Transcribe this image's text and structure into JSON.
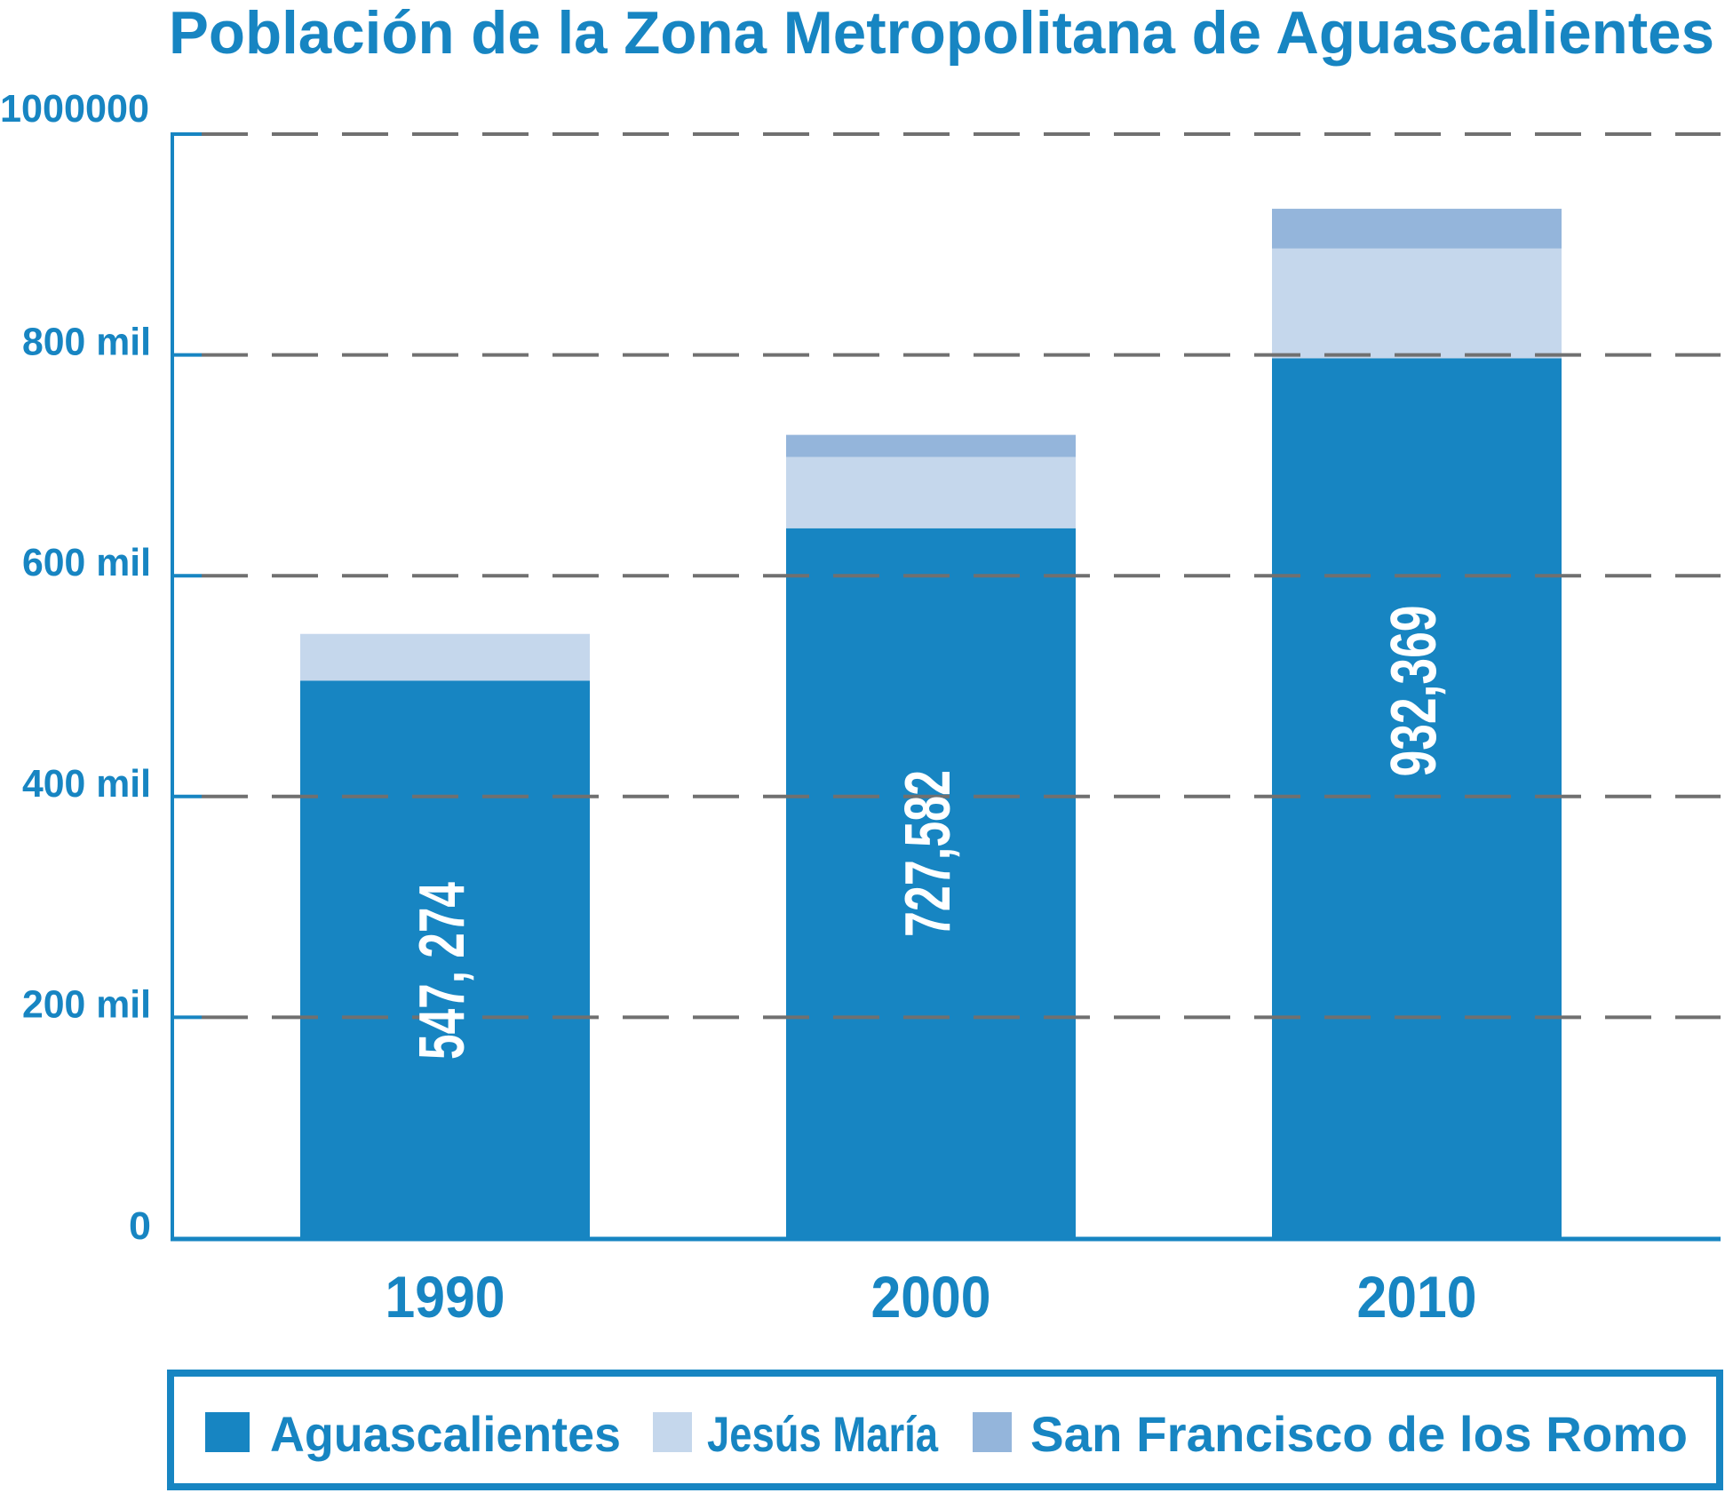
{
  "chart_data": {
    "type": "bar",
    "stacked": true,
    "title": "Población de la Zona Metropolitana de Aguascalientes",
    "xlabel": "",
    "ylabel": "",
    "categories": [
      "1990",
      "2000",
      "2010"
    ],
    "series": [
      {
        "name": "Aguascalientes",
        "color": "#1785C2",
        "values": [
          505000,
          643000,
          797000
        ]
      },
      {
        "name": "Jesús María",
        "color": "#C5D7EC",
        "values": [
          42274,
          64582,
          99369
        ]
      },
      {
        "name": "San Francisco de los Romo",
        "color": "#94B5DB",
        "values": [
          0,
          20000,
          36000
        ]
      }
    ],
    "totals": [
      547274,
      727582,
      932369
    ],
    "total_labels": [
      "547, 274",
      "727,582",
      "932,369"
    ],
    "ylim": [
      0,
      1000000
    ],
    "yticks": [
      0,
      200000,
      400000,
      600000,
      800000,
      1000000
    ],
    "ytick_labels": [
      "0",
      "200 mil",
      "400 mil",
      "600 mil",
      "800 mil",
      "1000000"
    ],
    "grid": true,
    "grid_style": "dashed",
    "legend": {
      "placement": "bottom",
      "entries": [
        "Aguascalientes",
        "Jesús María",
        "San Francisco de los Romo"
      ]
    }
  },
  "colors": {
    "accent": "#1785C2",
    "grid": "#707070",
    "label_text": "#FFFFFF"
  }
}
